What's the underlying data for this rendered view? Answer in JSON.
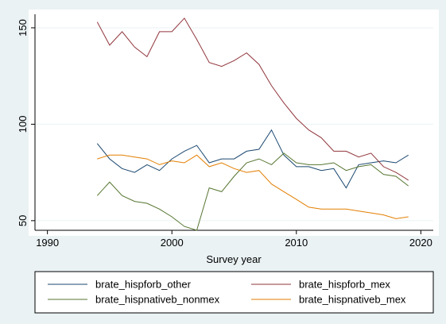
{
  "chart_data": {
    "type": "line",
    "title": "",
    "xlabel": "Survey year",
    "ylabel": "",
    "xlim": [
      1989,
      2021
    ],
    "ylim": [
      45,
      157
    ],
    "xticks": [
      1990,
      2000,
      2010,
      2020
    ],
    "yticks": [
      50,
      100,
      150
    ],
    "grid": true,
    "legend_position": "bottom",
    "x": [
      1994,
      1995,
      1996,
      1997,
      1998,
      1999,
      2000,
      2001,
      2002,
      2003,
      2004,
      2005,
      2006,
      2007,
      2008,
      2009,
      2010,
      2011,
      2012,
      2013,
      2014,
      2015,
      2016,
      2017,
      2018,
      2019
    ],
    "series": [
      {
        "name": "brate_hispforb_other",
        "color": "#1a476f",
        "values": [
          90,
          82,
          77,
          75,
          79,
          76,
          82,
          86,
          89,
          80,
          82,
          82,
          86,
          87,
          97,
          84,
          78,
          78,
          76,
          77,
          67,
          79,
          80,
          81,
          80,
          84
        ]
      },
      {
        "name": "brate_hispforb_mex",
        "color": "#90353b",
        "values": [
          153,
          141,
          148,
          140,
          135,
          148,
          148,
          155,
          144,
          132,
          130,
          133,
          137,
          131,
          120,
          111,
          103,
          97,
          93,
          86,
          86,
          83,
          85,
          78,
          75,
          71
        ]
      },
      {
        "name": "brate_hispnativeb_nonmex",
        "color": "#55752f",
        "values": [
          63,
          70,
          63,
          60,
          59,
          56,
          52,
          47,
          45,
          67,
          65,
          73,
          80,
          82,
          79,
          85,
          80,
          79,
          79,
          80,
          76,
          78,
          79,
          74,
          73,
          68
        ]
      },
      {
        "name": "brate_hispnativeb_mex",
        "color": "#e37e00",
        "values": [
          82,
          84,
          84,
          83,
          82,
          79,
          81,
          80,
          84,
          78,
          80,
          77,
          75,
          76,
          69,
          65,
          61,
          57,
          56,
          56,
          56,
          55,
          54,
          53,
          51,
          52
        ]
      }
    ]
  }
}
